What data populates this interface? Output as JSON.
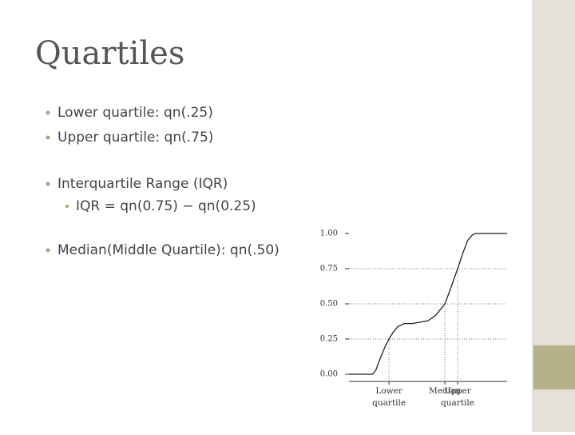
{
  "title": "Quartiles",
  "bullets": [
    "Lower quartile: qn(.25)",
    "Upper quartile: qn(.75)",
    "Interquartile Range (IQR)",
    "Median(Middle Quartile): qn(.50)"
  ],
  "sub_bullet": "IQR = qn(0.75) − qn(0.25)",
  "chart_data": {
    "type": "line",
    "x": [
      0,
      1.5,
      1.7,
      2.0,
      2.3,
      2.53,
      2.8,
      3.1,
      3.5,
      4.0,
      4.5,
      5.0,
      5.5,
      6.06,
      6.4,
      6.87,
      7.2,
      7.5,
      7.8,
      8.0,
      10
    ],
    "series": [
      {
        "color": "#222222",
        "values": [
          0,
          0,
          0.03,
          0.12,
          0.2,
          0.25,
          0.3,
          0.34,
          0.36,
          0.36,
          0.37,
          0.38,
          0.42,
          0.5,
          0.6,
          0.75,
          0.86,
          0.95,
          0.99,
          1,
          1
        ]
      }
    ],
    "xlim": [
      0,
      10
    ],
    "ylim": [
      0,
      1
    ],
    "yticks": [
      {
        "value": 0,
        "label": "0.00"
      },
      {
        "value": 0.25,
        "label": "0.25"
      },
      {
        "value": 0.5,
        "label": "0.50"
      },
      {
        "value": 0.75,
        "label": "0.75"
      },
      {
        "value": 1,
        "label": "1.00"
      }
    ],
    "markers": [
      {
        "label": "Lower quartile",
        "x": 2.53,
        "y": 0.25
      },
      {
        "label": "Median",
        "x": 6.06,
        "y": 0.5
      },
      {
        "label": "Upper quartile",
        "x": 6.87,
        "y": 0.75
      }
    ],
    "grid": true
  }
}
